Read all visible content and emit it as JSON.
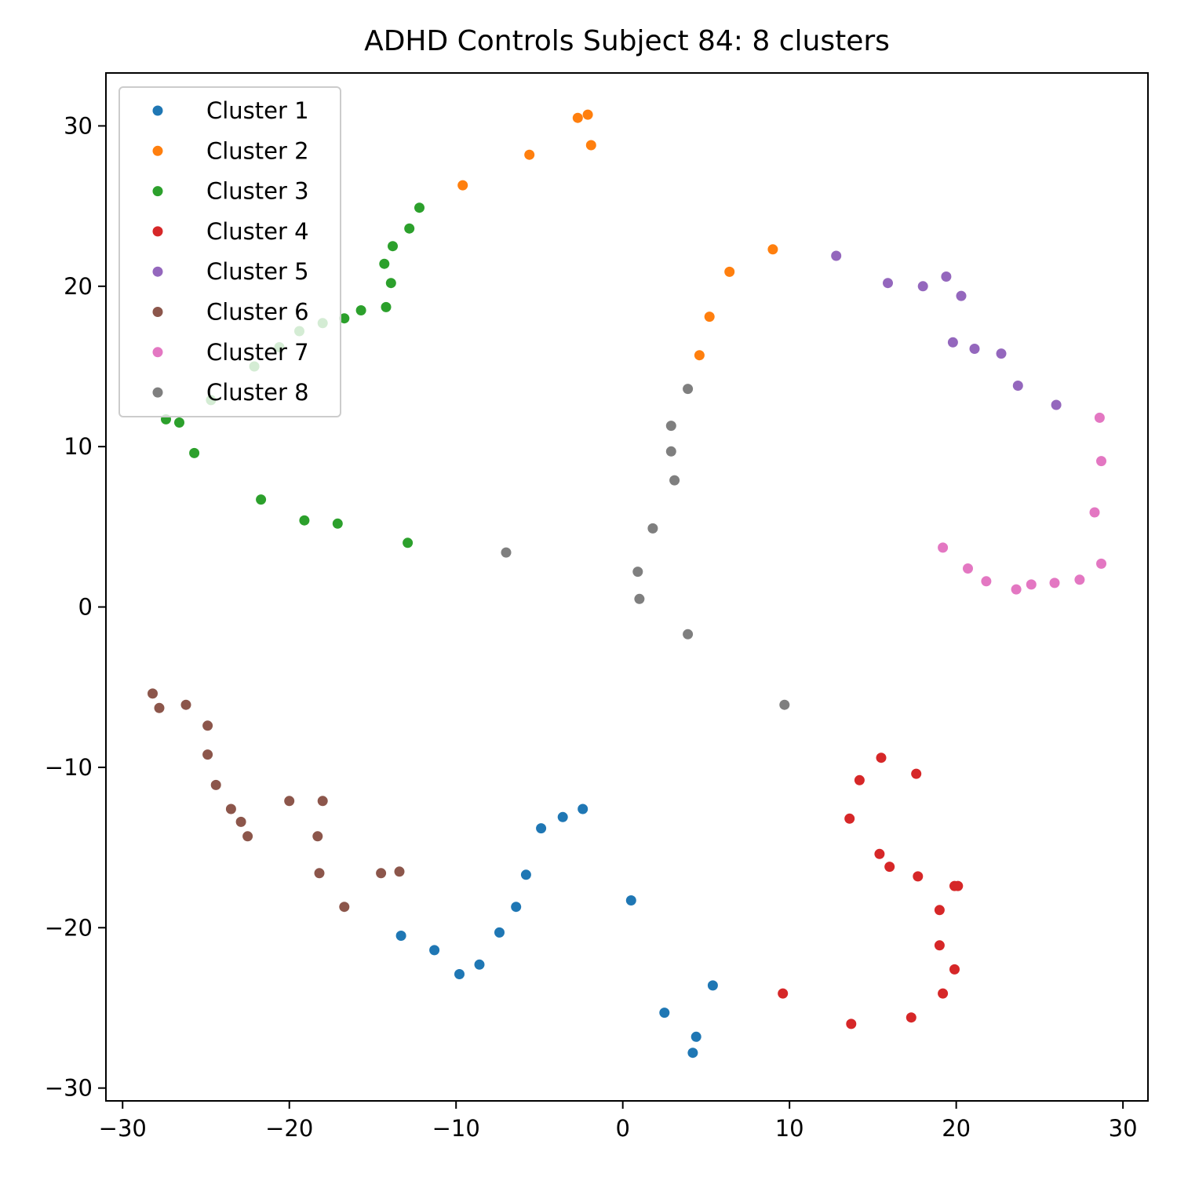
{
  "chart_data": {
    "type": "scatter",
    "title": "ADHD Controls Subject 84: 8 clusters",
    "xlabel": "",
    "ylabel": "",
    "xlim": [
      -31,
      31.5
    ],
    "ylim": [
      -30.8,
      33.3
    ],
    "xticks": [
      -30,
      -20,
      -10,
      0,
      10,
      20,
      30
    ],
    "yticks": [
      -30,
      -20,
      -10,
      0,
      10,
      20,
      30
    ],
    "xtick_labels": [
      "−30",
      "−20",
      "−10",
      "0",
      "10",
      "20",
      "30"
    ],
    "ytick_labels": [
      "−30",
      "−20",
      "−10",
      "0",
      "10",
      "20",
      "30"
    ],
    "grid": false,
    "legend_position": "upper-left",
    "series": [
      {
        "name": "Cluster 1",
        "color": "#1f77b4",
        "points": [
          [
            -2.4,
            -12.6
          ],
          [
            -3.6,
            -13.1
          ],
          [
            -4.9,
            -13.8
          ],
          [
            -5.8,
            -16.7
          ],
          [
            -6.4,
            -18.7
          ],
          [
            -7.4,
            -20.3
          ],
          [
            -8.6,
            -22.3
          ],
          [
            -9.8,
            -22.9
          ],
          [
            -11.3,
            -21.4
          ],
          [
            -13.3,
            -20.5
          ],
          [
            0.5,
            -18.3
          ],
          [
            5.4,
            -23.6
          ],
          [
            2.5,
            -25.3
          ],
          [
            4.4,
            -26.8
          ],
          [
            4.2,
            -27.8
          ]
        ]
      },
      {
        "name": "Cluster 2",
        "color": "#ff7f0e",
        "points": [
          [
            -2.7,
            30.5
          ],
          [
            -2.1,
            30.7
          ],
          [
            -1.9,
            28.8
          ],
          [
            -5.6,
            28.2
          ],
          [
            -9.6,
            26.3
          ],
          [
            9.0,
            22.3
          ],
          [
            6.4,
            20.9
          ],
          [
            5.2,
            18.1
          ],
          [
            4.6,
            15.7
          ]
        ]
      },
      {
        "name": "Cluster 3",
        "color": "#2ca02c",
        "points": [
          [
            -12.2,
            24.9
          ],
          [
            -12.8,
            23.6
          ],
          [
            -13.8,
            22.5
          ],
          [
            -14.3,
            21.4
          ],
          [
            -13.9,
            20.2
          ],
          [
            -14.2,
            18.7
          ],
          [
            -15.7,
            18.5
          ],
          [
            -16.7,
            18.0
          ],
          [
            -18.0,
            17.7
          ],
          [
            -19.4,
            17.2
          ],
          [
            -20.6,
            16.2
          ],
          [
            -22.1,
            15.0
          ],
          [
            -24.7,
            12.9
          ],
          [
            -27.4,
            11.7
          ],
          [
            -26.6,
            11.5
          ],
          [
            -25.7,
            9.6
          ],
          [
            -21.7,
            6.7
          ],
          [
            -19.1,
            5.4
          ],
          [
            -17.1,
            5.2
          ],
          [
            -12.9,
            4.0
          ]
        ]
      },
      {
        "name": "Cluster 4",
        "color": "#d62728",
        "points": [
          [
            15.5,
            -9.4
          ],
          [
            14.2,
            -10.8
          ],
          [
            17.6,
            -10.4
          ],
          [
            13.6,
            -13.2
          ],
          [
            15.4,
            -15.4
          ],
          [
            16.0,
            -16.2
          ],
          [
            17.7,
            -16.8
          ],
          [
            19.9,
            -17.4
          ],
          [
            20.1,
            -17.4
          ],
          [
            19.0,
            -18.9
          ],
          [
            19.0,
            -21.1
          ],
          [
            19.9,
            -22.6
          ],
          [
            19.2,
            -24.1
          ],
          [
            9.6,
            -24.1
          ],
          [
            17.3,
            -25.6
          ],
          [
            13.7,
            -26.0
          ]
        ]
      },
      {
        "name": "Cluster 5",
        "color": "#9467bd",
        "points": [
          [
            12.8,
            21.9
          ],
          [
            15.9,
            20.2
          ],
          [
            18.0,
            20.0
          ],
          [
            19.4,
            20.6
          ],
          [
            20.3,
            19.4
          ],
          [
            19.8,
            16.5
          ],
          [
            21.1,
            16.1
          ],
          [
            22.7,
            15.8
          ],
          [
            23.7,
            13.8
          ],
          [
            26.0,
            12.6
          ]
        ]
      },
      {
        "name": "Cluster 6",
        "color": "#8c564b",
        "points": [
          [
            -28.2,
            -5.4
          ],
          [
            -27.8,
            -6.3
          ],
          [
            -26.2,
            -6.1
          ],
          [
            -24.9,
            -7.4
          ],
          [
            -24.9,
            -9.2
          ],
          [
            -24.4,
            -11.1
          ],
          [
            -23.5,
            -12.6
          ],
          [
            -22.9,
            -13.4
          ],
          [
            -22.5,
            -14.3
          ],
          [
            -20.0,
            -12.1
          ],
          [
            -18.0,
            -12.1
          ],
          [
            -18.3,
            -14.3
          ],
          [
            -18.2,
            -16.6
          ],
          [
            -16.7,
            -18.7
          ],
          [
            -14.5,
            -16.6
          ],
          [
            -13.4,
            -16.5
          ]
        ]
      },
      {
        "name": "Cluster 7",
        "color": "#e377c2",
        "points": [
          [
            28.6,
            11.8
          ],
          [
            28.7,
            9.1
          ],
          [
            28.3,
            5.9
          ],
          [
            28.7,
            2.7
          ],
          [
            27.4,
            1.7
          ],
          [
            25.9,
            1.5
          ],
          [
            24.5,
            1.4
          ],
          [
            23.6,
            1.1
          ],
          [
            21.8,
            1.6
          ],
          [
            20.7,
            2.4
          ],
          [
            19.2,
            3.7
          ]
        ]
      },
      {
        "name": "Cluster 8",
        "color": "#7f7f7f",
        "points": [
          [
            3.9,
            13.6
          ],
          [
            2.9,
            11.3
          ],
          [
            2.9,
            9.7
          ],
          [
            3.1,
            7.9
          ],
          [
            1.8,
            4.9
          ],
          [
            -7.0,
            3.4
          ],
          [
            0.9,
            2.2
          ],
          [
            1.0,
            0.5
          ],
          [
            3.9,
            -1.7
          ],
          [
            9.7,
            -6.1
          ]
        ]
      }
    ]
  }
}
